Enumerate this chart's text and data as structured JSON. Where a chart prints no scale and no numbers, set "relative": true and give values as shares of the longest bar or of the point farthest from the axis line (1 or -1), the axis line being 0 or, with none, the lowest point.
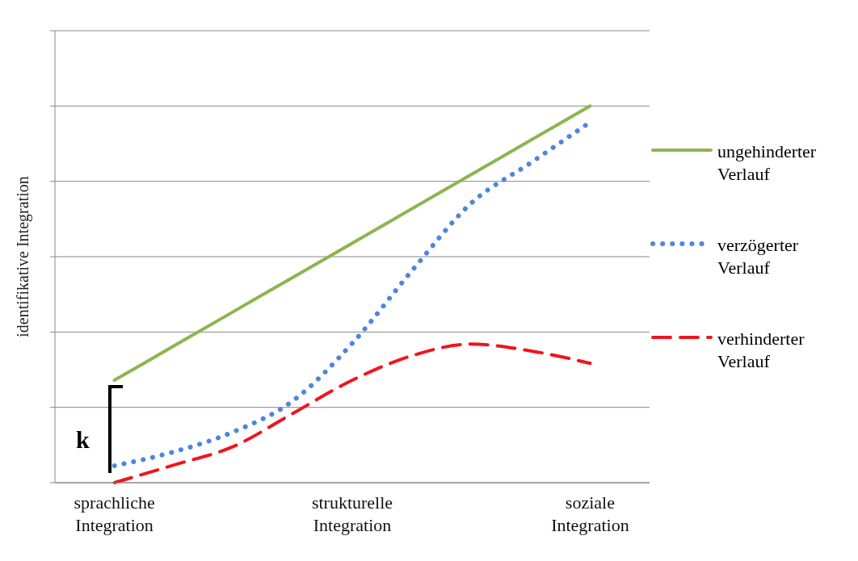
{
  "chart_data": {
    "type": "line",
    "relative": true,
    "ylabel": "identifikative Integration",
    "categories": [
      "sprachliche Integration",
      null,
      null,
      null,
      "strukturelle Integration",
      null,
      null,
      null,
      "soziale Integration"
    ],
    "series": [
      {
        "name": "ungehinderter Verlauf",
        "color": "#8db550",
        "line_style": "solid",
        "values": [
          0.272,
          0.363,
          0.454,
          0.545,
          0.636,
          0.727,
          0.818,
          0.909,
          1
        ]
      },
      {
        "name": "verzögerter Verlauf",
        "color": "#4f86d9",
        "line_style": "dotted",
        "values": [
          0.045,
          0.082,
          0.135,
          0.217,
          0.37,
          0.562,
          0.742,
          0.849,
          0.957
        ]
      },
      {
        "name": "verhinderter Verlauf",
        "color": "#f0141e",
        "line_style": "dashed",
        "values": [
          0,
          0.047,
          0.096,
          0.184,
          0.272,
          0.337,
          0.368,
          0.35,
          0.317
        ]
      }
    ],
    "annotations": [
      "k"
    ],
    "grid": "y",
    "legend": "right",
    "marker": "none"
  }
}
